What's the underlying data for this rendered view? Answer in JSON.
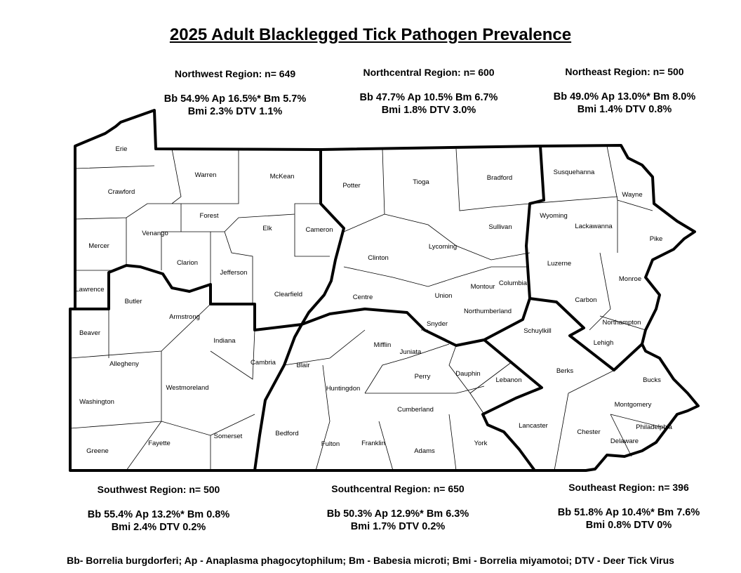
{
  "title": "2025 Adult Blacklegged Tick Pathogen Prevalence",
  "regions": [
    {
      "name": "Northwest Region: n= 649",
      "line1": "Bb 54.9%  Ap 16.5%*  Bm 5.7%",
      "line2": "Bmi 2.3% DTV 1.1%"
    },
    {
      "name": "Northcentral Region: n= 600",
      "line1": "Bb 47.7%  Ap 10.5%  Bm  6.7%",
      "line2": "Bmi  1.8%  DTV  3.0%"
    },
    {
      "name": "Northeast Region: n= 500",
      "line1": "Bb 49.0% Ap 13.0%* Bm 8.0%",
      "line2": "Bmi  1.4%  DTV  0.8%"
    },
    {
      "name": "Southwest Region: n= 500",
      "line1": "Bb 55.4%  Ap 13.2%*  Bm 0.8%",
      "line2": "Bmi  2.4%  DTV  0.2%"
    },
    {
      "name": "Southcentral Region: n= 650",
      "line1": "Bb 50.3% Ap 12.9%*  Bm 6.3%",
      "line2": "Bmi 1.7%  DTV  0.2%"
    },
    {
      "name": "Southeast Region: n= 396",
      "line1": "Bb 51.8% Ap 10.4%*  Bm 7.6%",
      "line2": "Bmi  0.8%  DTV  0%"
    }
  ],
  "legend": "Bb- Borrelia burgdorferi; Ap - Anaplasma phagocytophilum; Bm - Babesia microti; Bmi - Borrelia miyamotoi; DTV - Deer Tick Virus",
  "counties": [
    "Erie",
    "Crawford",
    "Warren",
    "McKean",
    "Potter",
    "Tioga",
    "Bradford",
    "Susquehanna",
    "Wayne",
    "Mercer",
    "Venango",
    "Forest",
    "Elk",
    "Cameron",
    "Clinton",
    "Lycoming",
    "Sullivan",
    "Wyoming",
    "Lackawanna",
    "Pike",
    "Lawrence",
    "Butler",
    "Clarion",
    "Jefferson",
    "Clearfield",
    "Centre",
    "Union",
    "Montour",
    "Columbia",
    "Luzerne",
    "Monroe",
    "Carbon",
    "Northumberland",
    "Snyder",
    "Schuylkill",
    "Northampton",
    "Lehigh",
    "Beaver",
    "Armstrong",
    "Indiana",
    "Cambria",
    "Blair",
    "Mifflin",
    "Juniata",
    "Perry",
    "Dauphin",
    "Lebanon",
    "Berks",
    "Bucks",
    "Allegheny",
    "Westmoreland",
    "Huntingdon",
    "Washington",
    "Cumberland",
    "Lancaster",
    "Chester",
    "Montgomery",
    "Philadelphia",
    "Delaware",
    "Greene",
    "Fayette",
    "Somerset",
    "Bedford",
    "Fulton",
    "Franklin",
    "Adams",
    "York"
  ]
}
